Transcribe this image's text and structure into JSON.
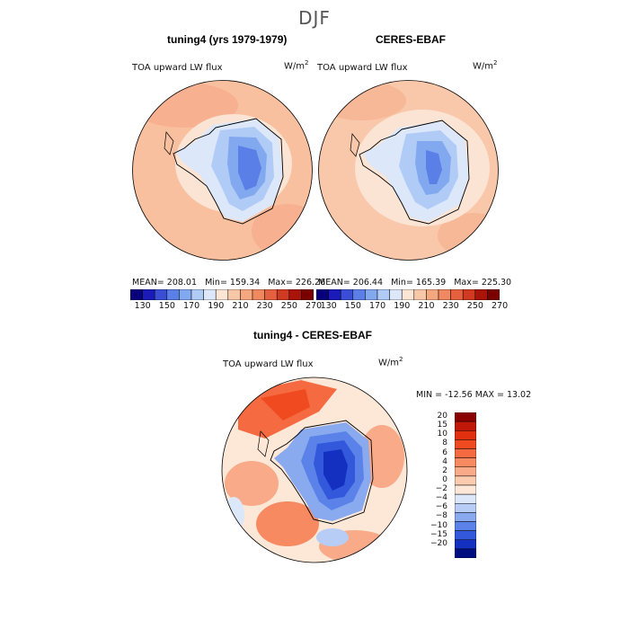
{
  "title": "DJF",
  "panels": [
    {
      "title": "tuning4 (yrs 1979-1979)",
      "variable": "TOA upward LW flux",
      "units_base": "W/m",
      "units_sup": "2",
      "mean_label": "MEAN= 208.01",
      "min_label": "Min= 159.34",
      "max_label": "Max= 226.26"
    },
    {
      "title": "CERES-EBAF",
      "variable": "TOA upward LW flux",
      "units_base": "W/m",
      "units_sup": "2",
      "mean_label": "MEAN= 206.44",
      "min_label": "Min= 165.39",
      "max_label": "Max= 225.30"
    },
    {
      "title": "tuning4 - CERES-EBAF",
      "variable": "TOA upward LW flux",
      "units_base": "W/m",
      "units_sup": "2",
      "minmax_label": "MIN = -12.56 MAX =  13.02"
    }
  ],
  "chart_data": [
    {
      "type": "heatmap",
      "title": "tuning4 (yrs 1979-1979)",
      "projection": "south polar stereographic",
      "mean": 208.01,
      "min": 159.34,
      "max": 226.26,
      "colorbar_ticks": [
        "130",
        "150",
        "170",
        "190",
        "210",
        "230",
        "250",
        "270"
      ],
      "colorbar_colors": [
        "#08007a",
        "#1a1ab8",
        "#3a4fd6",
        "#5a7fe6",
        "#82a8f0",
        "#b0ccf6",
        "#dce8fa",
        "#fbe6d6",
        "#f7c8a8",
        "#f5a880",
        "#f08860",
        "#e66040",
        "#d03a20",
        "#a81408",
        "#7a0000"
      ]
    },
    {
      "type": "heatmap",
      "title": "CERES-EBAF",
      "projection": "south polar stereographic",
      "mean": 206.44,
      "min": 165.39,
      "max": 225.3,
      "colorbar_ticks": [
        "130",
        "150",
        "170",
        "190",
        "210",
        "230",
        "250",
        "270"
      ],
      "colorbar_colors": [
        "#08007a",
        "#1a1ab8",
        "#3a4fd6",
        "#5a7fe6",
        "#82a8f0",
        "#b0ccf6",
        "#dce8fa",
        "#fbe6d6",
        "#f7c8a8",
        "#f5a880",
        "#f08860",
        "#e66040",
        "#d03a20",
        "#a81408",
        "#7a0000"
      ]
    },
    {
      "type": "heatmap",
      "title": "tuning4 - CERES-EBAF",
      "projection": "south polar stereographic",
      "min": -12.56,
      "max": 13.02,
      "colorbar_ticks": [
        "20",
        "15",
        "10",
        "8",
        "6",
        "4",
        "2",
        "0",
        "-2",
        "-4",
        "-6",
        "-8",
        "-10",
        "-15",
        "-20"
      ],
      "colorbar_colors": [
        "#8a0000",
        "#c01808",
        "#e03010",
        "#f04a20",
        "#f56a40",
        "#f78a60",
        "#f9aa88",
        "#fbcbb0",
        "#fde8d8",
        "#dce8fa",
        "#b8cdf5",
        "#8aaaf0",
        "#5a82e8",
        "#3358dc",
        "#1430c0",
        "#000e80"
      ]
    }
  ]
}
